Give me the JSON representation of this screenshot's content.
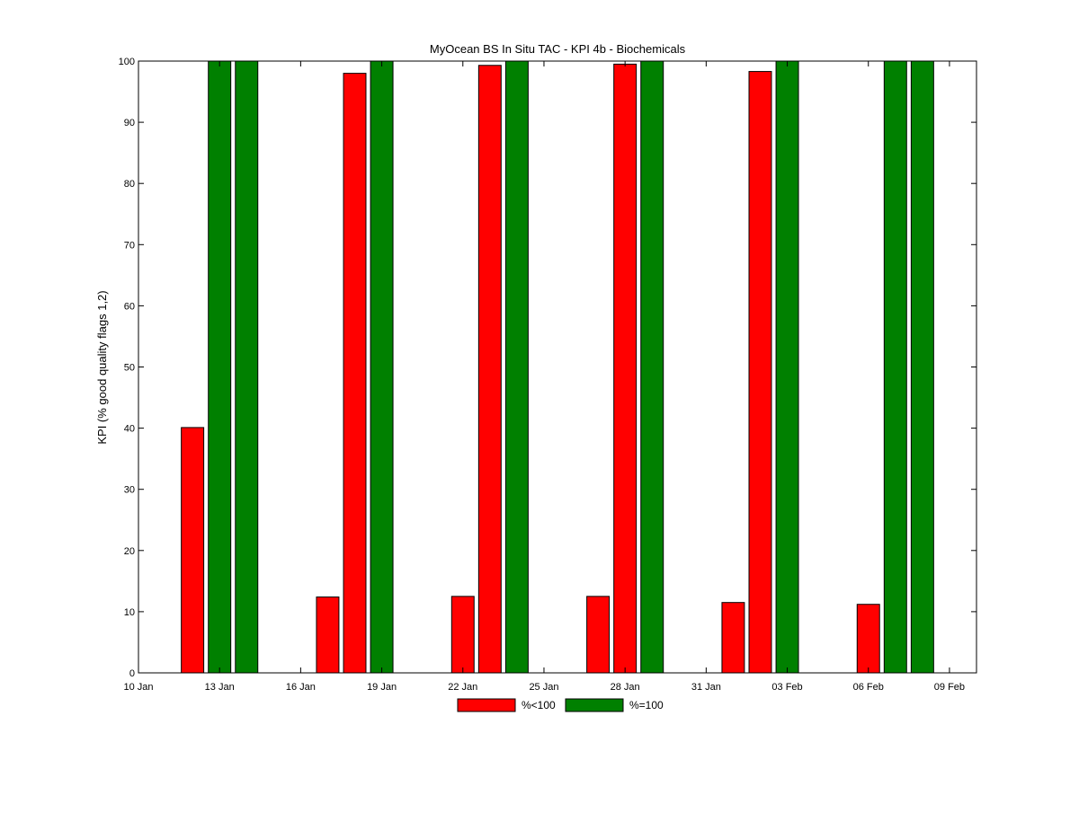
{
  "chart_data": {
    "type": "bar",
    "title": "MyOcean  BS In Situ TAC - KPI 4b - Biochemicals",
    "xlabel": "",
    "ylabel": "KPI (% good quality flags 1,2)",
    "xlim": [
      "10 Jan",
      "10 Feb"
    ],
    "ylim": [
      0,
      100
    ],
    "x_ticks": [
      "10 Jan",
      "13 Jan",
      "16 Jan",
      "19 Jan",
      "22 Jan",
      "25 Jan",
      "28 Jan",
      "31 Jan",
      "03 Feb",
      "06 Feb",
      "09 Feb"
    ],
    "y_ticks": [
      0,
      10,
      20,
      30,
      40,
      50,
      60,
      70,
      80,
      90,
      100
    ],
    "grid": false,
    "legend_position": "bottom-center",
    "series": [
      {
        "name": "%<100",
        "color": "#ff0000",
        "points": [
          {
            "x": "12 Jan",
            "y": 40.1
          },
          {
            "x": "17 Jan",
            "y": 12.4
          },
          {
            "x": "18 Jan",
            "y": 98.0
          },
          {
            "x": "22 Jan",
            "y": 12.5
          },
          {
            "x": "23 Jan",
            "y": 99.3
          },
          {
            "x": "27 Jan",
            "y": 12.5
          },
          {
            "x": "28 Jan",
            "y": 99.5
          },
          {
            "x": "01 Feb",
            "y": 11.5
          },
          {
            "x": "02 Feb",
            "y": 98.3
          },
          {
            "x": "06 Feb",
            "y": 11.2
          }
        ]
      },
      {
        "name": "%=100",
        "color": "#008000",
        "points": [
          {
            "x": "13 Jan",
            "y": 100
          },
          {
            "x": "14 Jan",
            "y": 100
          },
          {
            "x": "19 Jan",
            "y": 100
          },
          {
            "x": "24 Jan",
            "y": 100
          },
          {
            "x": "29 Jan",
            "y": 100
          },
          {
            "x": "03 Feb",
            "y": 100
          },
          {
            "x": "07 Feb",
            "y": 100
          },
          {
            "x": "08 Feb",
            "y": 100
          }
        ]
      }
    ]
  }
}
